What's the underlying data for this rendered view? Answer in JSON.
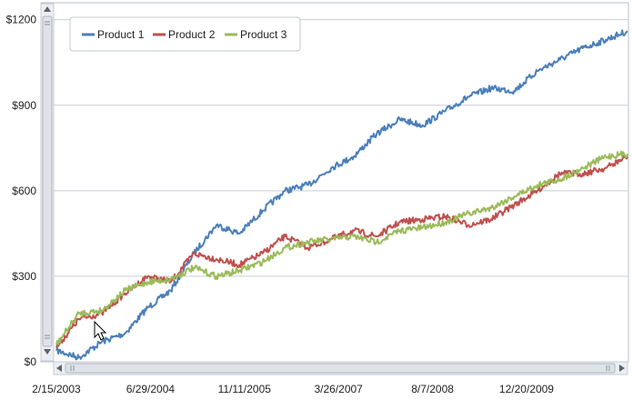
{
  "chart_data": {
    "type": "line",
    "title": "",
    "xlabel": "",
    "ylabel": "",
    "ylim": [
      0,
      1250
    ],
    "xlim": [
      "2003-02-15",
      "2011-06-10"
    ],
    "grid": true,
    "legend_position": "top-left",
    "y_ticks": [
      "$0",
      "$300",
      "$600",
      "$900",
      "$1200"
    ],
    "y_tick_values": [
      0,
      300,
      600,
      900,
      1200
    ],
    "x_ticks": [
      "2/15/2003",
      "6/29/2004",
      "11/11/2005",
      "3/26/2007",
      "8/7/2008",
      "12/20/2009"
    ],
    "x_tick_dates": [
      "2003-02-15",
      "2004-06-29",
      "2005-11-11",
      "2007-03-26",
      "2008-08-07",
      "2009-12-20"
    ],
    "x": [
      "2003-02-15",
      "2003-06-15",
      "2003-10-15",
      "2004-02-15",
      "2004-06-15",
      "2004-10-15",
      "2005-02-15",
      "2005-06-15",
      "2005-10-15",
      "2006-02-15",
      "2006-06-15",
      "2006-10-15",
      "2007-02-15",
      "2007-06-15",
      "2007-10-15",
      "2008-02-15",
      "2008-06-15",
      "2008-10-15",
      "2009-02-15",
      "2009-06-15",
      "2009-10-15",
      "2010-02-15",
      "2010-06-15",
      "2010-10-15",
      "2011-02-15",
      "2011-06-10"
    ],
    "series": [
      {
        "name": "Product 1",
        "color": "#4a7fbb",
        "values": [
          40,
          15,
          70,
          100,
          190,
          250,
          380,
          480,
          450,
          530,
          600,
          620,
          680,
          720,
          800,
          850,
          830,
          880,
          930,
          960,
          950,
          1020,
          1060,
          1100,
          1130,
          1160
        ]
      },
      {
        "name": "Product 2",
        "color": "#c0504d",
        "values": [
          50,
          150,
          170,
          240,
          300,
          280,
          380,
          360,
          340,
          380,
          440,
          400,
          430,
          460,
          440,
          490,
          500,
          510,
          480,
          500,
          550,
          600,
          660,
          660,
          680,
          720
        ]
      },
      {
        "name": "Product 3",
        "color": "#9bbb59",
        "values": [
          60,
          170,
          180,
          250,
          280,
          290,
          330,
          300,
          320,
          350,
          400,
          420,
          430,
          440,
          420,
          460,
          470,
          490,
          520,
          540,
          580,
          620,
          640,
          680,
          720,
          730
        ]
      }
    ]
  },
  "ui": {
    "vertical_scrollbar": {
      "track_color": "#eceef1"
    },
    "horizontal_scrollbar": {
      "track_color": "#eceef1"
    },
    "cursor": "arrow-cursor"
  }
}
